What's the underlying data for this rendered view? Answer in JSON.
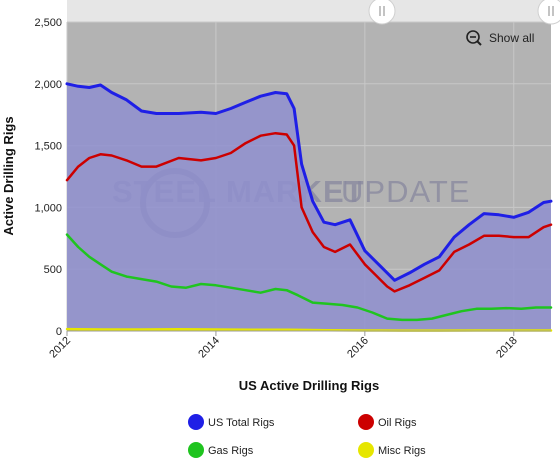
{
  "colors": {
    "plot_background": "#b3b3b3",
    "area_fill": "#8f8fcf",
    "us_total": "#1f1fe6",
    "oil": "#cc0000",
    "gas": "#1fc41f",
    "misc": "#e6e600"
  },
  "toolbar": {
    "show_all_label": "Show all",
    "zoom_icon": "zoom-out-icon"
  },
  "watermark": {
    "bold_text": "STEEL MARKET",
    "light_text": "UPDATE"
  },
  "chart_data": {
    "type": "line",
    "title": "",
    "xlabel": "US Active Drilling Rigs",
    "ylabel": "Active Drilling Rigs",
    "x_ticks": [
      "2012",
      "2014",
      "2016",
      "2018"
    ],
    "y_ticks": [
      "0",
      "500",
      "1,000",
      "1,500",
      "2,000",
      "2,500"
    ],
    "xlim": [
      2012.0,
      2018.5
    ],
    "ylim": [
      0,
      2500
    ],
    "grid": true,
    "legend_position": "bottom",
    "series": [
      {
        "name": "US Total Rigs",
        "color": "#1f1fe6",
        "x": [
          2012.0,
          2012.15,
          2012.3,
          2012.45,
          2012.6,
          2012.8,
          2013.0,
          2013.2,
          2013.5,
          2013.8,
          2014.0,
          2014.2,
          2014.4,
          2014.6,
          2014.8,
          2014.95,
          2015.05,
          2015.15,
          2015.3,
          2015.45,
          2015.6,
          2015.8,
          2016.0,
          2016.15,
          2016.3,
          2016.4,
          2016.6,
          2016.8,
          2017.0,
          2017.2,
          2017.4,
          2017.6,
          2017.8,
          2018.0,
          2018.2,
          2018.4,
          2018.5
        ],
        "y": [
          2000,
          1980,
          1970,
          1990,
          1930,
          1870,
          1780,
          1760,
          1760,
          1770,
          1760,
          1800,
          1850,
          1900,
          1930,
          1920,
          1800,
          1350,
          1050,
          880,
          860,
          900,
          650,
          560,
          470,
          410,
          470,
          540,
          600,
          760,
          860,
          950,
          940,
          920,
          960,
          1040,
          1050
        ]
      },
      {
        "name": "Oil Rigs",
        "color": "#cc0000",
        "x": [
          2012.0,
          2012.15,
          2012.3,
          2012.45,
          2012.6,
          2012.8,
          2013.0,
          2013.2,
          2013.5,
          2013.8,
          2014.0,
          2014.2,
          2014.4,
          2014.6,
          2014.8,
          2014.95,
          2015.05,
          2015.15,
          2015.3,
          2015.45,
          2015.6,
          2015.8,
          2016.0,
          2016.15,
          2016.3,
          2016.4,
          2016.6,
          2016.8,
          2017.0,
          2017.2,
          2017.4,
          2017.6,
          2017.8,
          2018.0,
          2018.2,
          2018.4,
          2018.5
        ],
        "y": [
          1220,
          1330,
          1400,
          1430,
          1420,
          1380,
          1330,
          1330,
          1400,
          1380,
          1400,
          1440,
          1520,
          1580,
          1600,
          1590,
          1500,
          1000,
          800,
          680,
          640,
          700,
          540,
          450,
          360,
          320,
          370,
          430,
          490,
          640,
          700,
          770,
          770,
          760,
          760,
          840,
          860
        ]
      },
      {
        "name": "Gas Rigs",
        "color": "#1fc41f",
        "x": [
          2012.0,
          2012.15,
          2012.3,
          2012.45,
          2012.6,
          2012.8,
          2013.0,
          2013.2,
          2013.4,
          2013.6,
          2013.8,
          2014.0,
          2014.2,
          2014.4,
          2014.6,
          2014.8,
          2014.95,
          2015.1,
          2015.3,
          2015.5,
          2015.7,
          2015.9,
          2016.1,
          2016.3,
          2016.5,
          2016.7,
          2016.9,
          2017.1,
          2017.3,
          2017.5,
          2017.7,
          2017.9,
          2018.1,
          2018.3,
          2018.5
        ],
        "y": [
          780,
          680,
          600,
          540,
          480,
          440,
          420,
          400,
          360,
          350,
          380,
          370,
          350,
          330,
          310,
          340,
          330,
          290,
          230,
          220,
          210,
          190,
          150,
          100,
          90,
          90,
          100,
          130,
          160,
          180,
          180,
          185,
          180,
          190,
          190
        ]
      },
      {
        "name": "Misc Rigs",
        "color": "#e6e600",
        "x": [
          2012.0,
          2012.5,
          2013.0,
          2013.5,
          2014.0,
          2014.5,
          2015.0,
          2015.5,
          2016.0,
          2016.5,
          2017.0,
          2017.5,
          2018.0,
          2018.5
        ],
        "y": [
          15,
          12,
          12,
          14,
          12,
          10,
          10,
          6,
          4,
          3,
          3,
          4,
          4,
          4
        ]
      }
    ]
  }
}
